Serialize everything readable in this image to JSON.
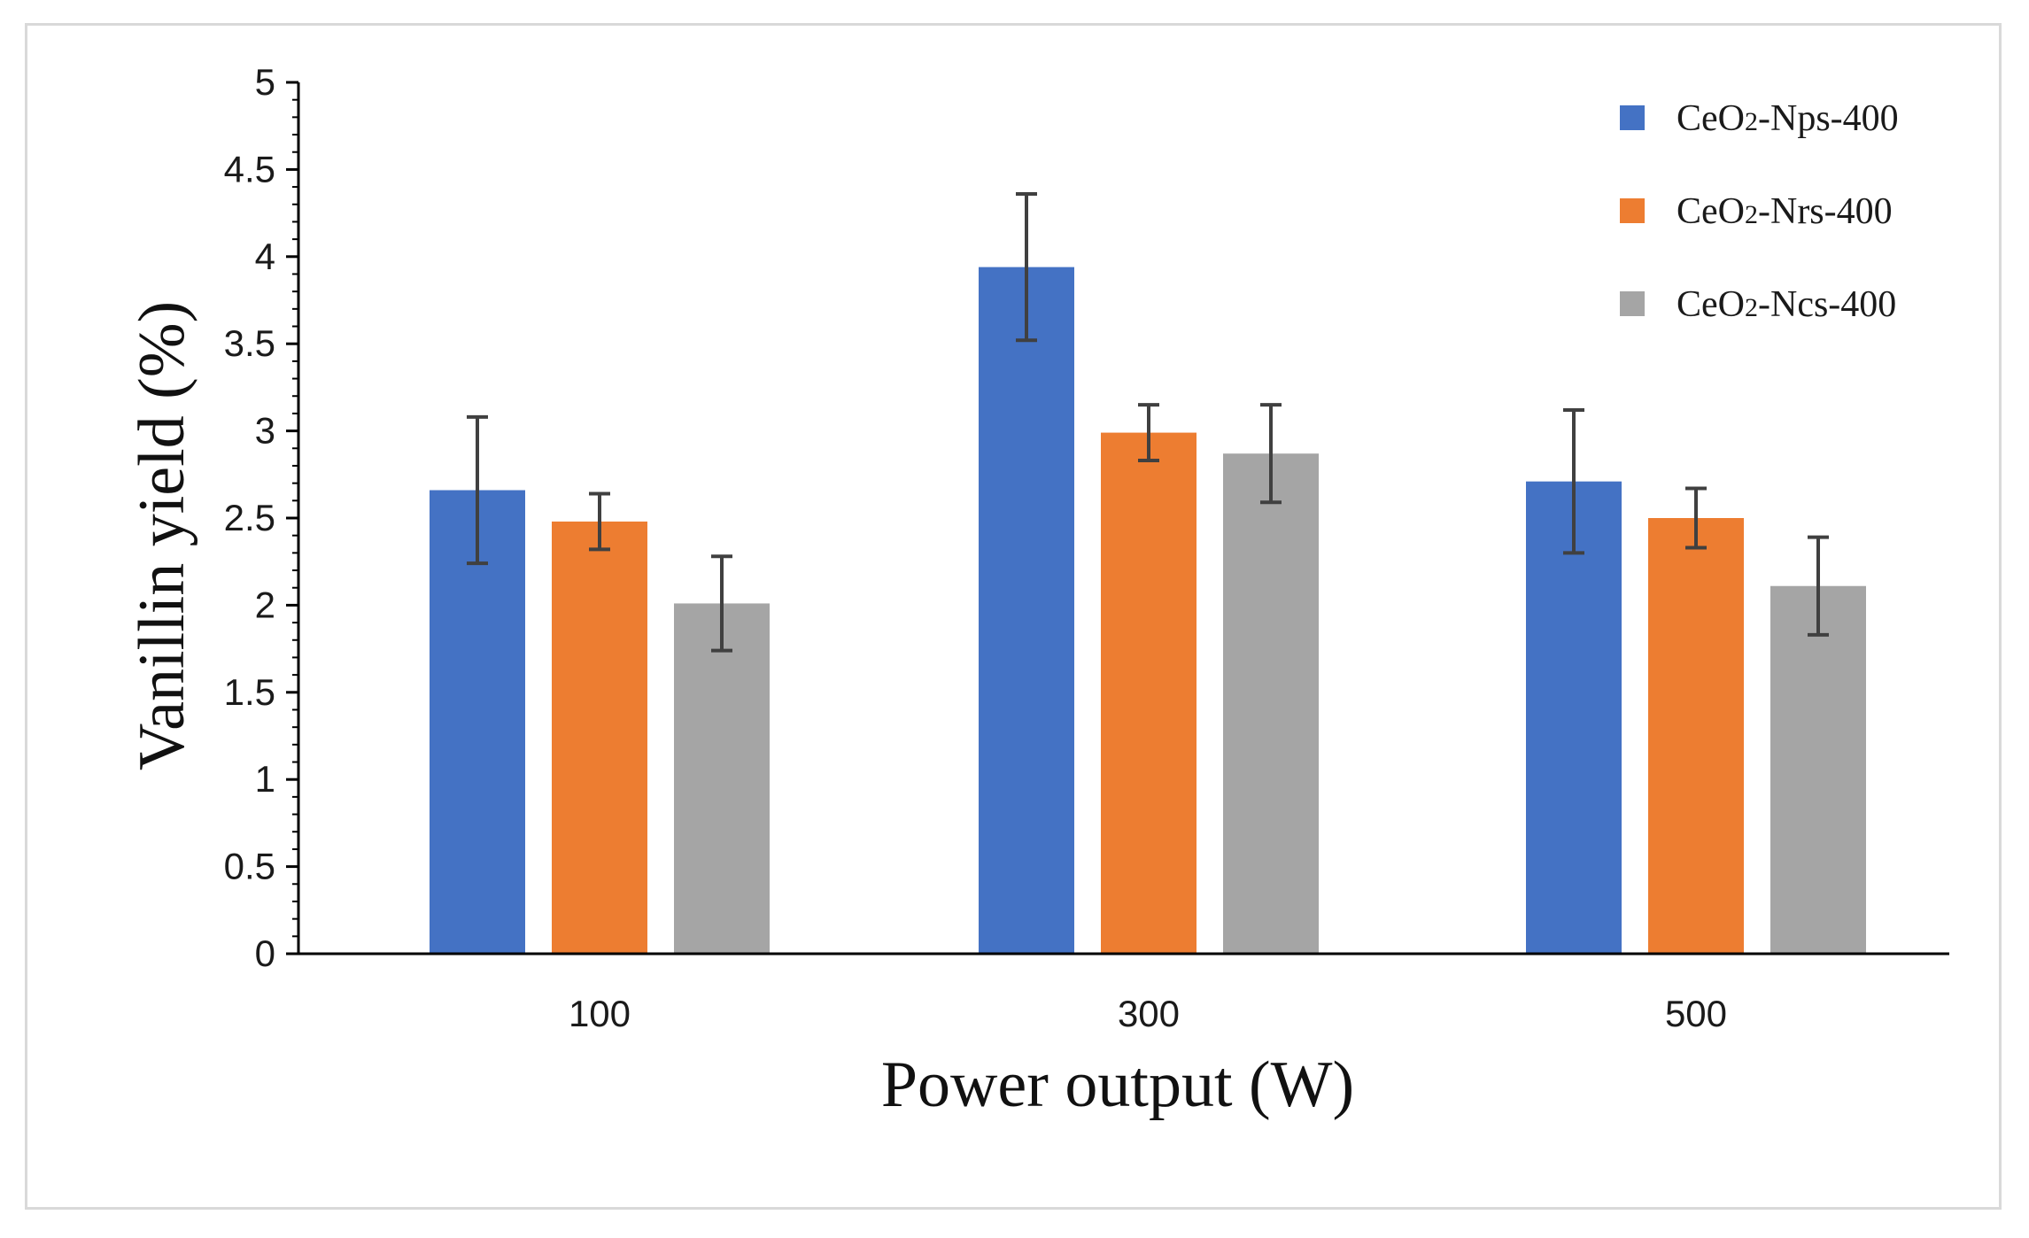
{
  "chart_data": {
    "type": "bar",
    "title": "",
    "xlabel": "Power output (W)",
    "ylabel": "Vanillin yield (%)",
    "categories": [
      "100",
      "300",
      "500"
    ],
    "ylim": [
      0,
      5
    ],
    "ytick_step": 0.5,
    "y_ticks": [
      "0",
      "0.5",
      "1",
      "1.5",
      "2",
      "2.5",
      "3",
      "3.5",
      "4",
      "4.5",
      "5"
    ],
    "grid": false,
    "legend_position": "top-right",
    "series": [
      {
        "name": "CeO2-Nps-400",
        "name_parts": {
          "base": "CeO",
          "sub": "2",
          "rest": "-Nps-400"
        },
        "color": "#4472C4",
        "values": [
          2.66,
          3.94,
          2.71
        ],
        "errors": [
          0.42,
          0.42,
          0.41
        ]
      },
      {
        "name": "CeO2-Nrs-400",
        "name_parts": {
          "base": "CeO",
          "sub": "2",
          "rest": "-Nrs-400"
        },
        "color": "#ED7D31",
        "values": [
          2.48,
          2.99,
          2.5
        ],
        "errors": [
          0.16,
          0.16,
          0.17
        ]
      },
      {
        "name": "CeO2-Ncs-400",
        "name_parts": {
          "base": "CeO",
          "sub": "2",
          "rest": "-Ncs-400"
        },
        "color": "#A5A5A5",
        "values": [
          2.01,
          2.87,
          2.11
        ],
        "errors": [
          0.27,
          0.28,
          0.28
        ]
      }
    ]
  },
  "colors": {
    "axis": "#000000",
    "error_bar": "#404040",
    "frame_border": "#d9d9d9"
  }
}
